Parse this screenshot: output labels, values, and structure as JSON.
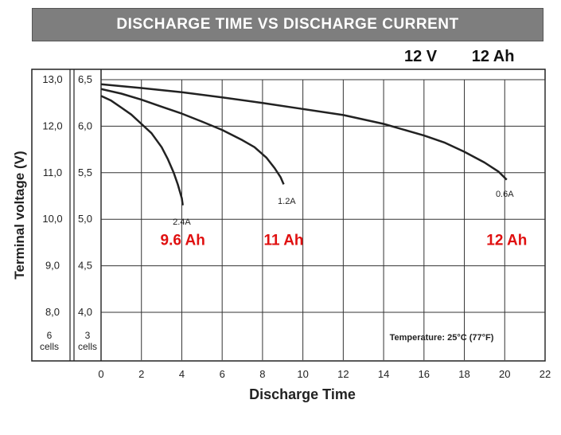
{
  "chart_data": {
    "type": "line",
    "title": "DISCHARGE TIME VS DISCHARGE CURRENT",
    "spec": {
      "voltage": "12 V",
      "capacity": "12 Ah"
    },
    "xlabel": "Discharge Time",
    "ylabel": "Terminal voltage (V)",
    "xlim": [
      0,
      22
    ],
    "xticks": [
      0,
      2,
      4,
      6,
      8,
      10,
      12,
      14,
      16,
      18,
      20,
      22
    ],
    "ylim": [
      8.0,
      13.0
    ],
    "yticks_6cells": [
      "13,0",
      "12,0",
      "11,0",
      "10,0",
      "9,0",
      "8,0"
    ],
    "yticks_3cells": [
      "6,5",
      "6,0",
      "5,5",
      "5,0",
      "4,5",
      "4,0"
    ],
    "cells_labels": {
      "six": "6\ncells",
      "three": "3\ncells"
    },
    "grid": true,
    "annotation": "Temperature: 25°C (77°F)",
    "series": [
      {
        "name": "2.4A",
        "capacity_label": "9.6 Ah",
        "color": "#222222",
        "x": [
          0,
          0.5,
          1,
          1.5,
          2,
          2.5,
          3,
          3.3,
          3.6,
          3.8,
          4.0,
          4.05
        ],
        "y": [
          12.65,
          12.55,
          12.4,
          12.25,
          12.05,
          11.85,
          11.55,
          11.3,
          11.0,
          10.75,
          10.45,
          10.3
        ]
      },
      {
        "name": "1.2A",
        "capacity_label": "11 Ah",
        "color": "#222222",
        "x": [
          0,
          1,
          2,
          3,
          4,
          5,
          6,
          7,
          7.6,
          8.2,
          8.6,
          8.9,
          9.05
        ],
        "y": [
          12.8,
          12.7,
          12.57,
          12.42,
          12.27,
          12.1,
          11.92,
          11.7,
          11.55,
          11.32,
          11.1,
          10.9,
          10.75
        ]
      },
      {
        "name": "0.6A",
        "capacity_label": "12 Ah",
        "color": "#222222",
        "x": [
          0,
          2,
          4,
          6,
          8,
          10,
          12,
          14,
          16,
          17,
          18,
          19,
          19.7,
          20.1
        ],
        "y": [
          12.9,
          12.82,
          12.73,
          12.62,
          12.5,
          12.37,
          12.24,
          12.05,
          11.8,
          11.65,
          11.45,
          11.22,
          11.02,
          10.85
        ]
      }
    ]
  }
}
